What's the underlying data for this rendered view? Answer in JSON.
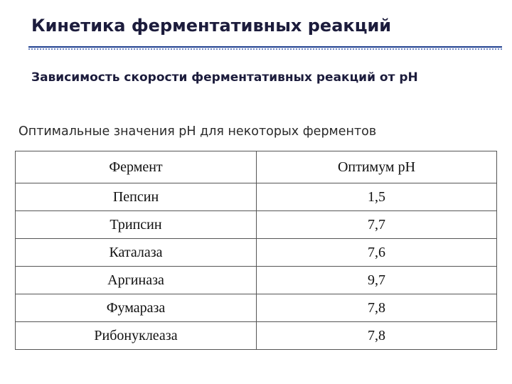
{
  "slide": {
    "title": "Кинетика ферментативных реакций",
    "subtitle": "Зависимость скорости ферментативных реакций от рН",
    "caption": "Оптимальные значения рН для некоторых ферментов"
  },
  "table": {
    "headers": [
      "Фермент",
      "Оптимум рН"
    ],
    "rows": [
      {
        "enzyme": "Пепсин",
        "ph": "1,5"
      },
      {
        "enzyme": "Трипсин",
        "ph": "7,7"
      },
      {
        "enzyme": "Каталаза",
        "ph": "7,6"
      },
      {
        "enzyme": "Аргиназа",
        "ph": "9,7"
      },
      {
        "enzyme": "Фумараза",
        "ph": "7,8"
      },
      {
        "enzyme": "Рибонуклеаза",
        "ph": "7,8"
      }
    ]
  },
  "colors": {
    "title_text": "#1c1c3c",
    "rule_line": "#1f3f8f",
    "rule_dots": "#6f86c4",
    "table_border": "#555555"
  }
}
